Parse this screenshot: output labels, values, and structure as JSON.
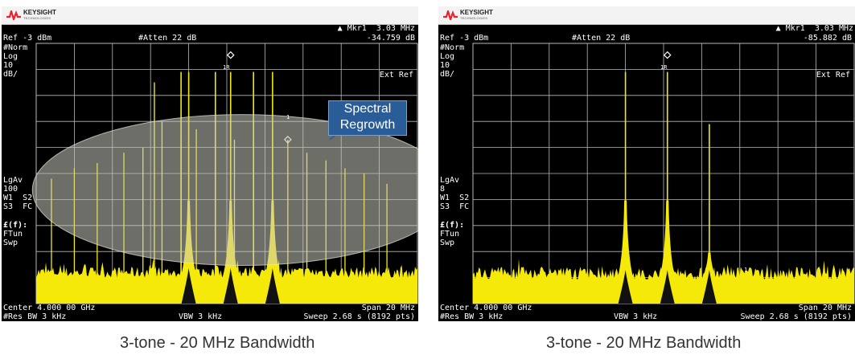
{
  "brand": {
    "name": "KEYSIGHT",
    "sub": "TECHNOLOGIES",
    "logo_color": "#e8232e"
  },
  "colors": {
    "trace": "#f5e90a",
    "grid": "#b9b9b9",
    "background": "#000000",
    "callout": "#2a5c98"
  },
  "left": {
    "marker_readout": "▲ Mkr1  3.03 MHz",
    "marker_delta": "-34.759 dB",
    "ref": "Ref -3 dBm",
    "atten": "#Atten 22 dB",
    "side_top": [
      "#Norm",
      "Log",
      "10",
      "dB/"
    ],
    "ext_ref": "Ext Ref",
    "side_mid": [
      "LgAv",
      "100",
      "W1  S2",
      "S3  FC"
    ],
    "side_low": [
      "£(f):",
      "FTun",
      "Swp"
    ],
    "center": "Center 4.000 00 GHz",
    "span": "Span 20 MHz",
    "res_bw": "#Res BW 3 kHz",
    "vbw": "VBW 3 kHz",
    "sweep": "Sweep 2.68 s (8192 pts)",
    "marker_1r": "1R",
    "marker_1": "1",
    "callout": [
      "Spectral",
      "Regrowth"
    ],
    "caption": "3-tone - 20 MHz Bandwidth"
  },
  "right": {
    "marker_readout": "▲ Mkr1  3.03 MHz",
    "marker_delta": "-85.882 dB",
    "ref": "Ref -3 dBm",
    "atten": "#Atten 22 dB",
    "side_top": [
      "#Norm",
      "Log",
      "10",
      "dB/"
    ],
    "ext_ref": "Ext Ref",
    "side_mid": [
      "LgAv",
      "8",
      "W1  S2",
      "S3  FC"
    ],
    "side_low": [
      "£(f):",
      "FTun",
      "Swp"
    ],
    "center": "Center 4.000 00 GHz",
    "span": "Span 20 MHz",
    "res_bw": "#Res BW 3 kHz",
    "vbw": "VBW 3 kHz",
    "sweep": "Sweep 2.68 s (8192 pts)",
    "marker_1r": "1R",
    "marker_1": "1",
    "caption": "3-tone - 20 MHz Bandwidth"
  }
}
